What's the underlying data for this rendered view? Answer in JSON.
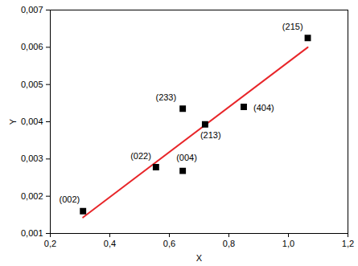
{
  "chart_data": {
    "type": "scatter",
    "x_label": "X",
    "y_label": "Y",
    "x": [
      0.31,
      0.555,
      0.645,
      0.645,
      0.72,
      0.85,
      1.065
    ],
    "values": [
      0.0016,
      0.00278,
      0.00268,
      0.00435,
      0.00393,
      0.0044,
      0.00625
    ],
    "point_labels": [
      "(002)",
      "(022)",
      "(004)",
      "(233)",
      "(213)",
      "(404)",
      "(215)"
    ],
    "color": "#000000",
    "marker": "square",
    "fit": {
      "type": "line",
      "color": "#e8262a",
      "x": [
        0.31,
        1.065
      ],
      "values": [
        0.00143,
        0.006
      ]
    },
    "xlim": [
      0.2,
      1.2
    ],
    "xticks": [
      {
        "value": 0.2,
        "label": "0,2"
      },
      {
        "value": 0.4,
        "label": "0,4"
      },
      {
        "value": 0.6,
        "label": "0,6"
      },
      {
        "value": 0.8,
        "label": "0,8"
      },
      {
        "value": 1.0,
        "label": "1,0"
      },
      {
        "value": 1.2,
        "label": "1,2"
      }
    ],
    "ylim": [
      0.001,
      0.007
    ],
    "yticks": [
      {
        "value": 0.001,
        "label": "0,001"
      },
      {
        "value": 0.002,
        "label": "0,002"
      },
      {
        "value": 0.003,
        "label": "0,003"
      },
      {
        "value": 0.004,
        "label": "0,004"
      },
      {
        "value": 0.005,
        "label": "0,005"
      },
      {
        "value": 0.006,
        "label": "0,006"
      },
      {
        "value": 0.007,
        "label": "0,007"
      }
    ],
    "grid": false
  }
}
